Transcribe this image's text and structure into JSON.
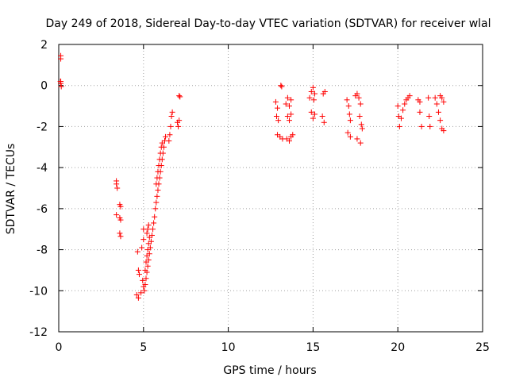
{
  "chart_data": {
    "type": "scatter",
    "title": "Day 249 of 2018, Sidereal Day-to-day VTEC variation (SDTVAR) for receiver wlal",
    "xlabel": "GPS time / hours",
    "ylabel": "SDTVAR / TECUs",
    "xlim": [
      0,
      25
    ],
    "ylim": [
      -12,
      2
    ],
    "xticks": [
      0,
      5,
      10,
      15,
      20,
      25
    ],
    "yticks": [
      -12,
      -10,
      -8,
      -6,
      -4,
      -2,
      0,
      2
    ],
    "grid": true,
    "marker": "plus",
    "color": "#ff0000",
    "series": [
      {
        "name": "SDTVAR",
        "points": [
          [
            0.12,
            1.45
          ],
          [
            0.12,
            1.3
          ],
          [
            0.12,
            0.2
          ],
          [
            0.12,
            0.1
          ],
          [
            0.15,
            -0.05
          ],
          [
            0.1,
            0.2
          ],
          [
            3.4,
            -4.65
          ],
          [
            3.4,
            -4.8
          ],
          [
            3.45,
            -5.0
          ],
          [
            3.6,
            -5.8
          ],
          [
            3.65,
            -5.9
          ],
          [
            3.4,
            -6.3
          ],
          [
            3.6,
            -6.45
          ],
          [
            3.65,
            -6.55
          ],
          [
            3.6,
            -7.2
          ],
          [
            3.65,
            -7.35
          ],
          [
            4.65,
            -8.1
          ],
          [
            4.7,
            -9.0
          ],
          [
            4.75,
            -9.2
          ],
          [
            4.6,
            -10.2
          ],
          [
            4.7,
            -10.35
          ],
          [
            4.85,
            -10.1
          ],
          [
            4.9,
            -7.9
          ],
          [
            5.0,
            -7.5
          ],
          [
            5.0,
            -7.0
          ],
          [
            4.95,
            -9.5
          ],
          [
            5.0,
            -9.8
          ],
          [
            5.05,
            -10.0
          ],
          [
            5.1,
            -9.7
          ],
          [
            5.15,
            -9.4
          ],
          [
            5.2,
            -9.1
          ],
          [
            5.25,
            -8.8
          ],
          [
            5.3,
            -8.5
          ],
          [
            5.35,
            -8.2
          ],
          [
            5.4,
            -7.9
          ],
          [
            5.45,
            -7.6
          ],
          [
            5.5,
            -7.3
          ],
          [
            5.55,
            -7.0
          ],
          [
            5.6,
            -6.7
          ],
          [
            5.65,
            -6.4
          ],
          [
            5.1,
            -9.0
          ],
          [
            5.15,
            -8.6
          ],
          [
            5.2,
            -8.3
          ],
          [
            5.25,
            -8.0
          ],
          [
            5.3,
            -7.7
          ],
          [
            5.35,
            -7.4
          ],
          [
            5.2,
            -7.2
          ],
          [
            5.25,
            -7.0
          ],
          [
            5.3,
            -6.8
          ],
          [
            5.7,
            -6.0
          ],
          [
            5.75,
            -5.7
          ],
          [
            5.8,
            -5.4
          ],
          [
            5.85,
            -5.1
          ],
          [
            5.9,
            -4.8
          ],
          [
            5.95,
            -4.5
          ],
          [
            6.0,
            -4.2
          ],
          [
            6.05,
            -3.9
          ],
          [
            6.1,
            -3.6
          ],
          [
            6.15,
            -3.3
          ],
          [
            6.2,
            -3.0
          ],
          [
            6.25,
            -2.7
          ],
          [
            6.3,
            -2.5
          ],
          [
            5.75,
            -4.8
          ],
          [
            5.8,
            -4.5
          ],
          [
            5.85,
            -4.2
          ],
          [
            5.9,
            -3.9
          ],
          [
            5.95,
            -3.6
          ],
          [
            6.0,
            -3.3
          ],
          [
            6.05,
            -3.0
          ],
          [
            6.1,
            -2.8
          ],
          [
            6.5,
            -2.7
          ],
          [
            6.55,
            -2.4
          ],
          [
            6.6,
            -2.0
          ],
          [
            6.65,
            -1.5
          ],
          [
            6.7,
            -1.3
          ],
          [
            7.0,
            -1.8
          ],
          [
            7.05,
            -2.0
          ],
          [
            7.1,
            -1.7
          ],
          [
            7.1,
            -0.5
          ],
          [
            7.15,
            -0.55
          ],
          [
            12.8,
            -0.8
          ],
          [
            12.9,
            -1.1
          ],
          [
            12.85,
            -1.5
          ],
          [
            12.95,
            -1.7
          ],
          [
            12.9,
            -2.4
          ],
          [
            13.05,
            -2.5
          ],
          [
            13.2,
            -2.6
          ],
          [
            13.1,
            -0.0
          ],
          [
            13.15,
            -0.05
          ],
          [
            13.4,
            -0.9
          ],
          [
            13.5,
            -0.6
          ],
          [
            13.6,
            -1.0
          ],
          [
            13.7,
            -0.7
          ],
          [
            13.5,
            -1.5
          ],
          [
            13.6,
            -1.7
          ],
          [
            13.7,
            -1.4
          ],
          [
            13.45,
            -2.6
          ],
          [
            13.6,
            -2.7
          ],
          [
            13.7,
            -2.5
          ],
          [
            13.8,
            -2.4
          ],
          [
            14.8,
            -0.6
          ],
          [
            14.9,
            -0.3
          ],
          [
            15.0,
            -0.1
          ],
          [
            15.05,
            -0.7
          ],
          [
            15.1,
            -0.4
          ],
          [
            14.9,
            -1.3
          ],
          [
            15.0,
            -1.6
          ],
          [
            15.1,
            -1.4
          ],
          [
            15.6,
            -0.4
          ],
          [
            15.7,
            -0.3
          ],
          [
            15.55,
            -1.5
          ],
          [
            15.65,
            -1.8
          ],
          [
            17.0,
            -0.7
          ],
          [
            17.1,
            -1.0
          ],
          [
            17.15,
            -1.4
          ],
          [
            17.2,
            -1.7
          ],
          [
            17.05,
            -2.3
          ],
          [
            17.2,
            -2.5
          ],
          [
            17.5,
            -0.5
          ],
          [
            17.6,
            -0.4
          ],
          [
            17.7,
            -0.6
          ],
          [
            17.8,
            -0.9
          ],
          [
            17.75,
            -1.5
          ],
          [
            17.85,
            -1.9
          ],
          [
            17.9,
            -2.1
          ],
          [
            17.6,
            -2.6
          ],
          [
            17.8,
            -2.8
          ],
          [
            20.0,
            -1.0
          ],
          [
            20.05,
            -1.5
          ],
          [
            20.1,
            -2.0
          ],
          [
            20.2,
            -1.6
          ],
          [
            20.3,
            -1.2
          ],
          [
            20.4,
            -0.9
          ],
          [
            20.5,
            -0.7
          ],
          [
            20.6,
            -0.6
          ],
          [
            20.7,
            -0.5
          ],
          [
            21.2,
            -0.7
          ],
          [
            21.3,
            -1.3
          ],
          [
            21.4,
            -2.0
          ],
          [
            21.3,
            -0.8
          ],
          [
            21.8,
            -0.6
          ],
          [
            21.85,
            -1.5
          ],
          [
            21.9,
            -2.0
          ],
          [
            22.2,
            -0.6
          ],
          [
            22.3,
            -0.9
          ],
          [
            22.4,
            -1.3
          ],
          [
            22.5,
            -1.7
          ],
          [
            22.6,
            -2.1
          ],
          [
            22.7,
            -2.2
          ],
          [
            22.5,
            -0.5
          ],
          [
            22.6,
            -0.6
          ],
          [
            22.7,
            -0.8
          ]
        ]
      }
    ]
  }
}
